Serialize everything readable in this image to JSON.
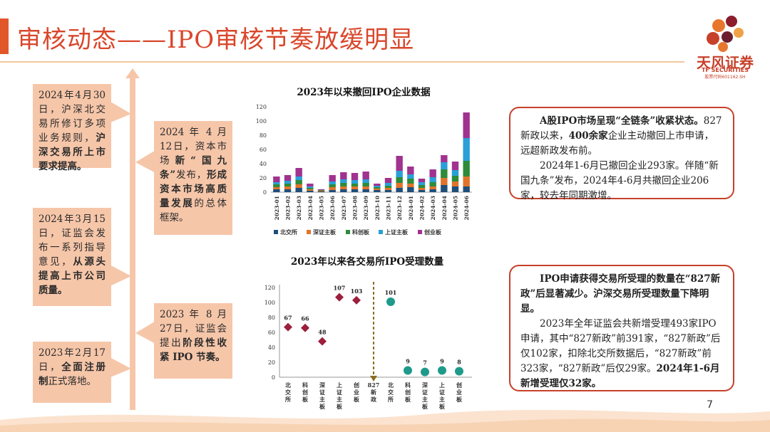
{
  "header": {
    "title": "审核动态——IPO审核节奏放缓明显",
    "logo_cn": "天风证券",
    "logo_en": "TF SECURITIES",
    "logo_code": "股票代码601162.SH"
  },
  "timeline": [
    {
      "id": "t1",
      "pre": "2024年4月30日，沪深北交易所修订多项业务规则，",
      "bold": "沪深交易所上市要求提高。",
      "post": ""
    },
    {
      "id": "t2",
      "pre": "2024 年 4 月12日，资本市场",
      "bold": "新“国九条”",
      "post": "发布，",
      "bold2": "形成资本市场高质量发展",
      "post2": "的总体框架。"
    },
    {
      "id": "t3",
      "pre": "2024年3月15日，证监会发布一系列指导意见，",
      "bold": "从源头提高上市公司质量。",
      "post": ""
    },
    {
      "id": "t4",
      "pre": "2023 年 8 月27日，证监会提出",
      "bold": "阶段性收紧 IPO 节奏。",
      "post": ""
    },
    {
      "id": "t5",
      "pre": "2023年2月17日，",
      "bold": "全面注册制",
      "post": "正式落地。"
    }
  ],
  "notes": {
    "note1": {
      "p1_bold": "A股IPO市场呈现“全链条”收紧状态。",
      "p1_a": "827新政以来，",
      "p1_bold2": "400余家",
      "p1_b": "企业主动撤回上市申请，远超新政发布前。",
      "p2": "2024年1-6月已撤回企业293家。伴随“新国九条”发布，2024年4-6月共撤回企业206家，较去年同期激增。"
    },
    "note2": {
      "p1_bold": "IPO申请获得交易所受理的数量在“827新政”后显著减少。沪深交易所受理数量下降明显。",
      "p2": "2023年全年证监会共新增受理493家IPO申请，其中“827新政”前391家，“827新政”后仅102家，扣除北交所数据后，“827新政”前323家，“827新政”后仅29家。",
      "p2_bold": "2024年1-6月新增受理仅32家。"
    }
  },
  "page_number": "7",
  "chart_data": [
    {
      "type": "bar",
      "stacked": true,
      "title": "2023年以来撤回IPO企业数据",
      "categories": [
        "2023-01",
        "2023-02",
        "2023-03",
        "2023-04",
        "2023-05",
        "2023-06",
        "2023-07",
        "2023-08",
        "2023-09",
        "2023-10",
        "2023-11",
        "2023-12",
        "2024-01",
        "2024-02",
        "2024-03",
        "2024-04",
        "2024-05",
        "2024-06"
      ],
      "ylim": [
        0,
        120
      ],
      "yticks": [
        0,
        20,
        40,
        60,
        80,
        100,
        120
      ],
      "series": [
        {
          "name": "北交所",
          "color": "#1f4e79",
          "values": [
            4,
            4,
            6,
            2,
            1,
            3,
            4,
            4,
            4,
            3,
            3,
            6,
            7,
            3,
            4,
            10,
            8,
            8
          ]
        },
        {
          "name": "深证主板",
          "color": "#e0742c",
          "values": [
            3,
            4,
            5,
            2,
            1,
            4,
            4,
            4,
            4,
            2,
            3,
            7,
            5,
            3,
            4,
            10,
            7,
            14
          ]
        },
        {
          "name": "科创板",
          "color": "#2e8b3a",
          "values": [
            4,
            4,
            6,
            2,
            1,
            4,
            5,
            4,
            5,
            2,
            3,
            8,
            7,
            4,
            6,
            12,
            8,
            22
          ]
        },
        {
          "name": "上证主板",
          "color": "#2a9fd8",
          "values": [
            3,
            4,
            5,
            2,
            0,
            4,
            5,
            5,
            5,
            2,
            4,
            9,
            6,
            4,
            7,
            10,
            8,
            32
          ]
        },
        {
          "name": "创业板",
          "color": "#a0338f",
          "values": [
            8,
            8,
            12,
            4,
            1,
            9,
            10,
            10,
            11,
            3,
            7,
            21,
            11,
            5,
            11,
            10,
            12,
            36
          ]
        }
      ],
      "legend_position": "bottom"
    },
    {
      "type": "scatter",
      "title": "2023年以来各交易所IPO受理数量",
      "categories": [
        "北交所",
        "科创板",
        "深证主板",
        "上证主板",
        "创业板",
        "827新政",
        "北交所",
        "科创板",
        "深证主板",
        "上证主板",
        "创业板"
      ],
      "category_labels": [
        [
          "北",
          "交",
          "所"
        ],
        [
          "科",
          "创",
          "板"
        ],
        [
          "深",
          "证",
          "主",
          "板"
        ],
        [
          "上",
          "证",
          "主",
          "板"
        ],
        [
          "创",
          "业",
          "板"
        ],
        [
          "827",
          "新",
          "政"
        ],
        [
          "北",
          "交",
          "所"
        ],
        [
          "科",
          "创",
          "板"
        ],
        [
          "深",
          "证",
          "主",
          "板"
        ],
        [
          "上",
          "证",
          "主",
          "板"
        ],
        [
          "创",
          "业",
          "板"
        ]
      ],
      "before": [
        67,
        66,
        48,
        107,
        103
      ],
      "after": [
        101,
        9,
        7,
        9,
        8
      ],
      "before_color": "#9c1f3c",
      "after_color": "#1f9a8a",
      "divider_color": "#8a6d1f",
      "ylim": [
        0,
        120
      ],
      "yticks": [
        0,
        20,
        40,
        60,
        80,
        100,
        120
      ]
    }
  ]
}
